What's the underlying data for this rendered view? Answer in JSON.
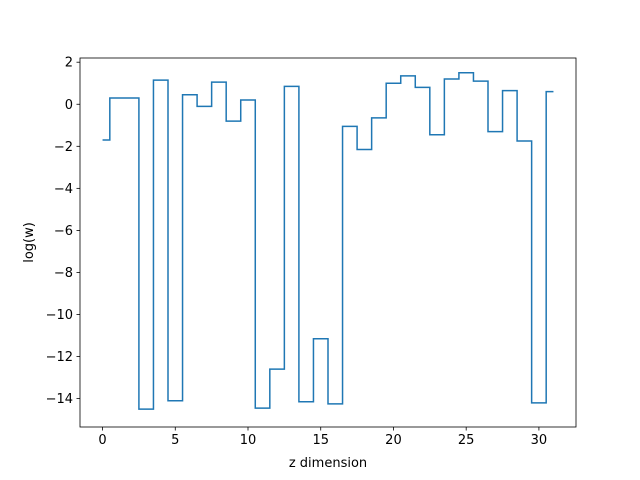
{
  "chart_data": {
    "type": "line",
    "drawstyle": "steps-mid",
    "title": "",
    "xlabel": "z dimension",
    "ylabel": "log(w)",
    "xlim": [
      -1.55,
      32.55
    ],
    "ylim": [
      -15.35,
      2.2
    ],
    "xticks": [
      0,
      5,
      10,
      15,
      20,
      25,
      30
    ],
    "xtick_labels": [
      "0",
      "5",
      "10",
      "15",
      "20",
      "25",
      "30"
    ],
    "yticks": [
      2,
      0,
      -2,
      -4,
      -6,
      -8,
      -10,
      -12,
      -14
    ],
    "ytick_labels": [
      "2",
      "0",
      "−2",
      "−4",
      "−6",
      "−8",
      "−10",
      "−12",
      "−14"
    ],
    "grid": false,
    "legend": "none",
    "series": [
      {
        "color": "#1f77b4",
        "x": [
          0,
          1,
          2,
          3,
          4,
          5,
          6,
          7,
          8,
          9,
          10,
          11,
          12,
          13,
          14,
          15,
          16,
          17,
          18,
          19,
          20,
          21,
          22,
          23,
          24,
          25,
          26,
          27,
          28,
          29,
          30,
          31
        ],
        "y": [
          -1.7,
          0.3,
          0.3,
          -14.5,
          1.15,
          -14.1,
          0.45,
          -0.1,
          1.05,
          -0.8,
          0.2,
          -14.45,
          -12.6,
          0.85,
          -14.15,
          -11.15,
          -14.25,
          -1.05,
          -2.15,
          -0.65,
          1.0,
          1.35,
          0.8,
          -1.45,
          1.2,
          1.5,
          1.1,
          -1.3,
          0.65,
          -1.75,
          -14.2,
          0.6
        ]
      }
    ]
  }
}
